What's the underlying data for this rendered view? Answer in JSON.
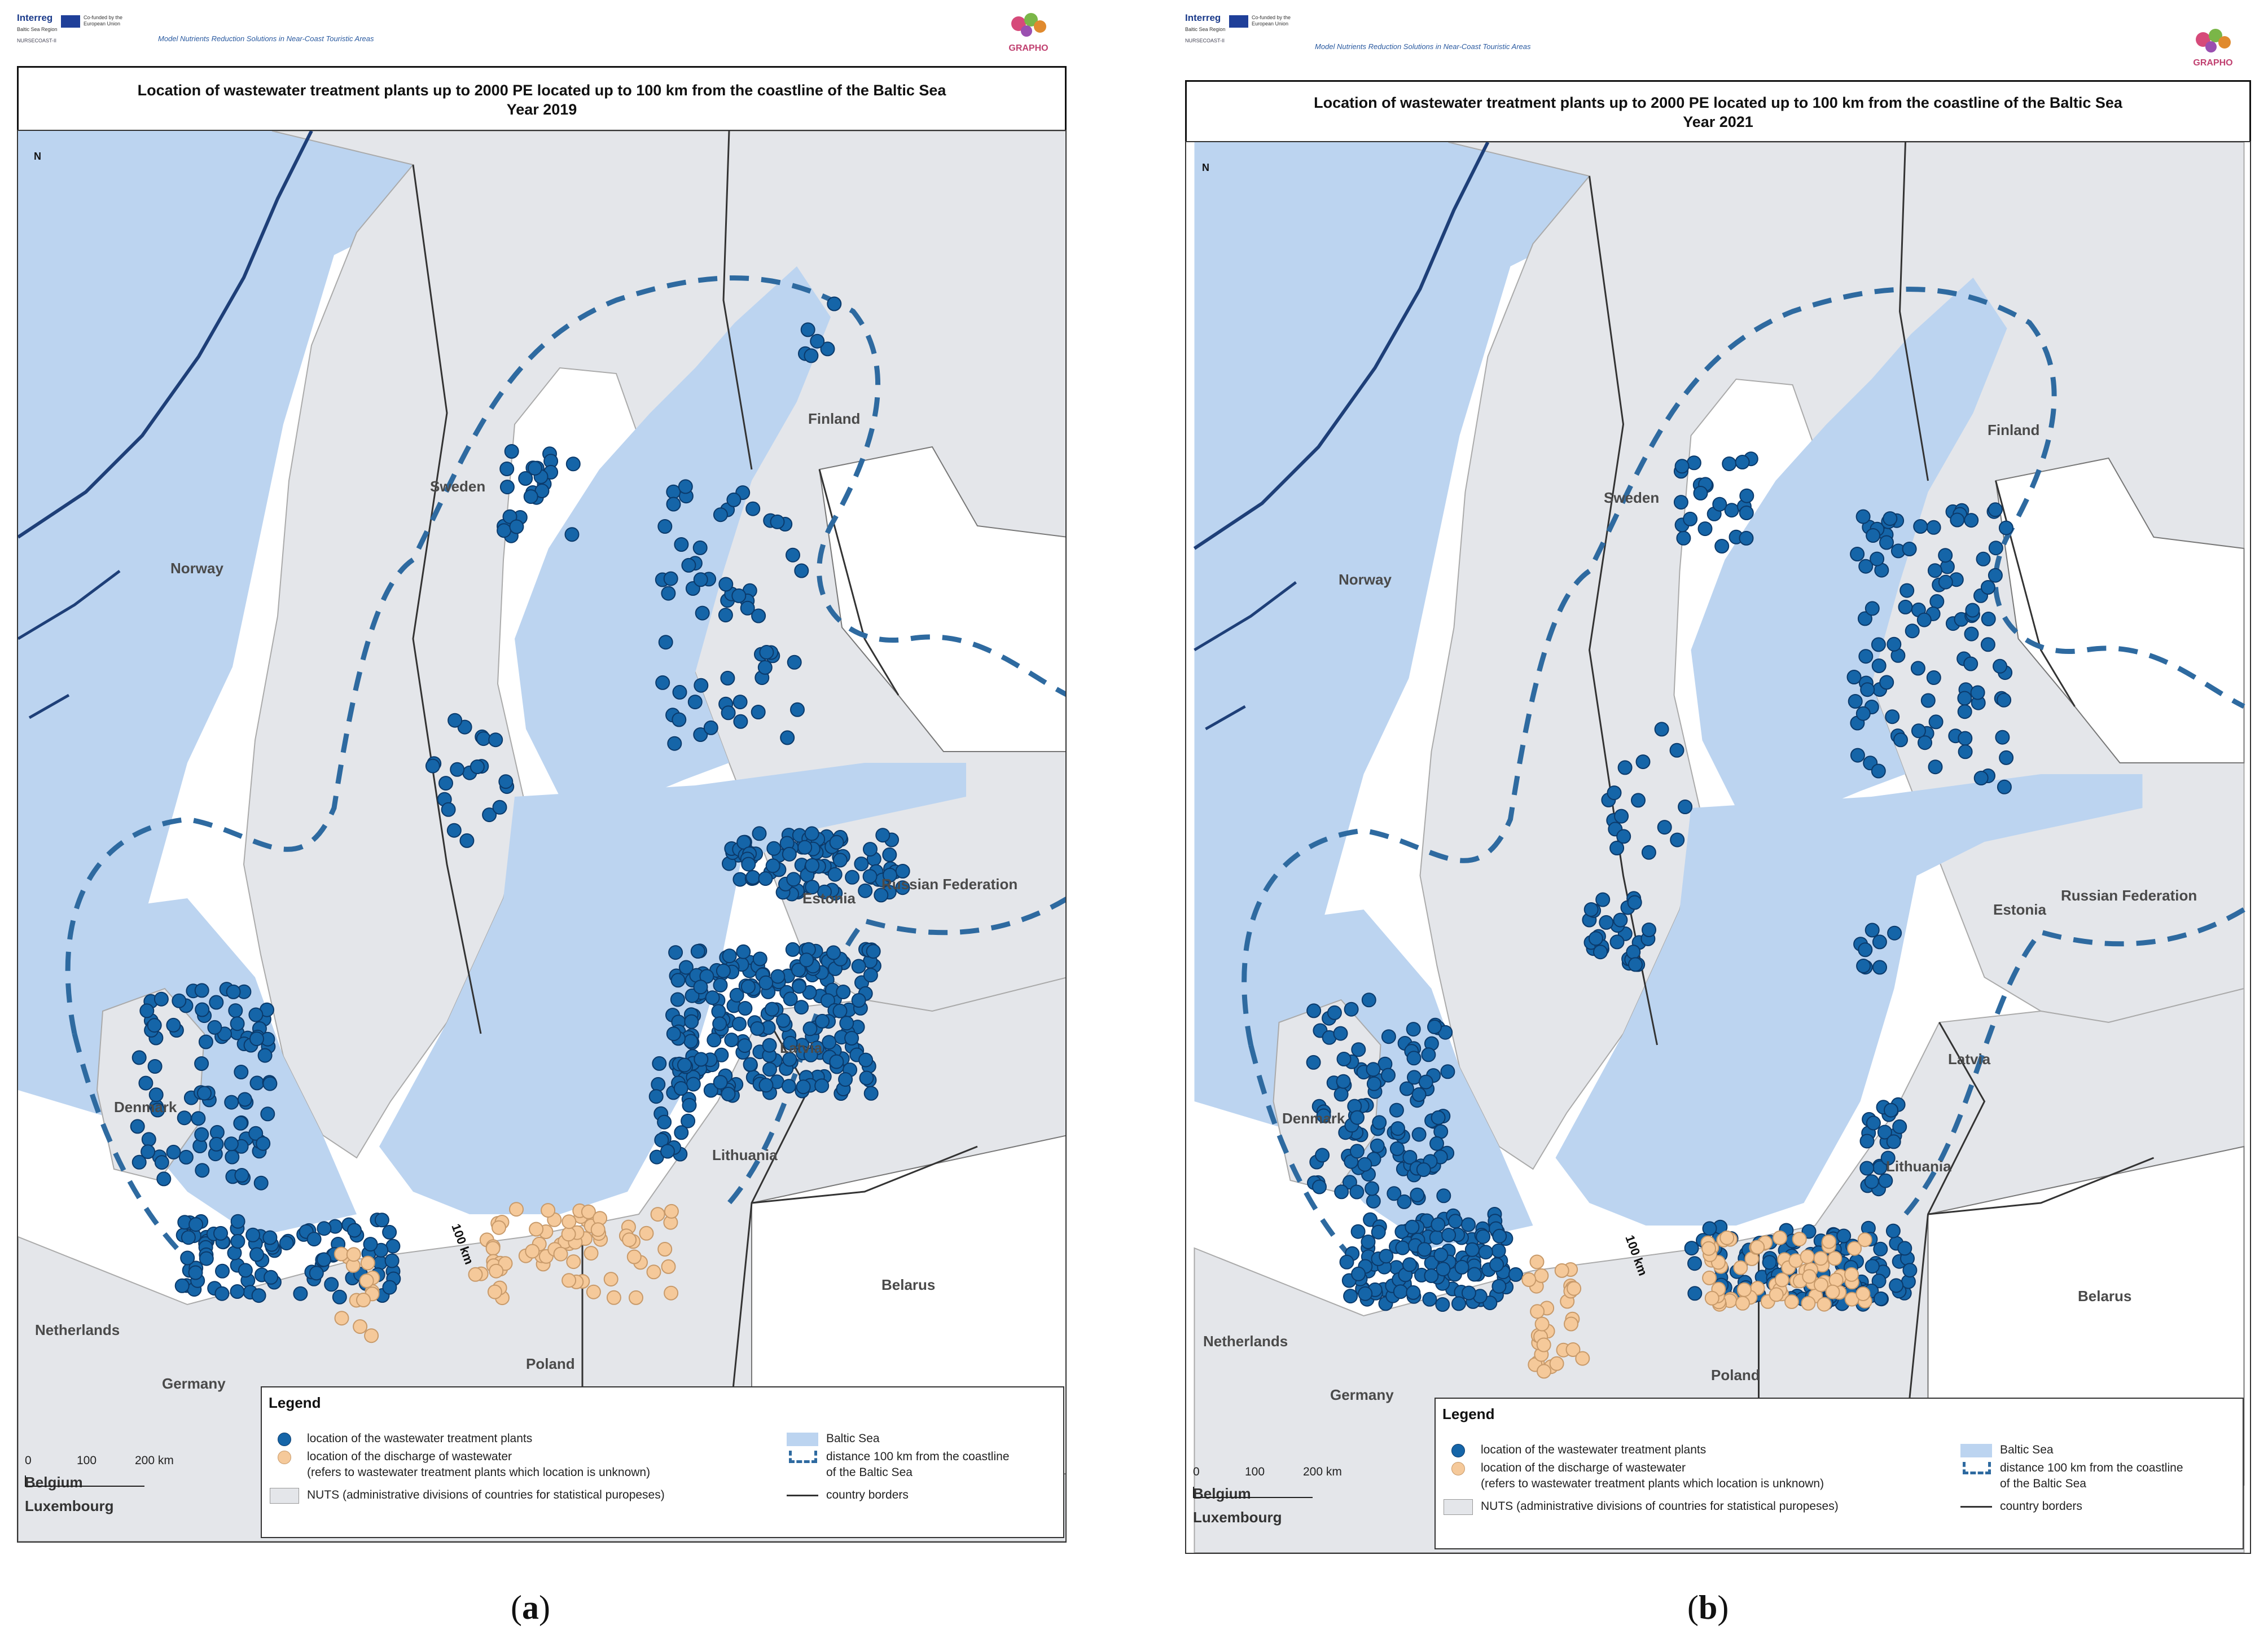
{
  "panels": [
    {
      "id": "a",
      "header": {
        "program": "Interreg",
        "program_sub": "Baltic Sea Region",
        "eu_text": "Co-funded by the European Union",
        "project_text": "Model Nutrients Reduction Solutions in Near-Coast Touristic Areas",
        "ns_logo": "NURSECOAST-II",
        "project_logo": "GRAPHO"
      },
      "title": {
        "line1": "Location of wastewater treatment plants up to 2000 PE located up to 100 km from the coastline of the Baltic Sea",
        "line2": "Year 2019"
      },
      "labels": {
        "norway": "Norway",
        "sweden": "Sweden",
        "finland": "Finland",
        "russia": "Russian Federation",
        "estonia": "Estonia",
        "latvia": "Latvia",
        "lithuania": "Lithuania",
        "denmark": "Denmark",
        "belarus": "Belarus",
        "netherlands": "Netherlands",
        "germany": "Germany",
        "poland": "Poland",
        "belgium": "Belgium",
        "luxembourg": "Luxembourg",
        "distance": "100 km",
        "north": "N"
      },
      "legend": {
        "title": "Legend",
        "wwtp": "location of the wastewater treatment plants",
        "discharge_1": "location of the discharge of wastewater",
        "discharge_2": "(refers to wastewater treatment plants which location is unknown)",
        "nuts": "NUTS (administrative divisions of countries for statistical puropeses)",
        "sea": "Baltic Sea",
        "dist_1": "distance 100 km from the coastline",
        "dist_2": "of the Baltic Sea",
        "borders": "country borders"
      },
      "scale": {
        "s0": "0",
        "s100": "100",
        "s200": "200 km"
      },
      "caption": "a"
    },
    {
      "id": "b",
      "header": {
        "program": "Interreg",
        "program_sub": "Baltic Sea Region",
        "eu_text": "Co-funded by the European Union",
        "project_text": "Model Nutrients Reduction Solutions in Near-Coast Touristic Areas",
        "ns_logo": "NURSECOAST-II",
        "project_logo": "GRAPHO"
      },
      "title": {
        "line1": "Location of wastewater treatment plants up to 2000 PE located up to 100 km from the coastline of the Baltic Sea",
        "line2": "Year 2021"
      },
      "labels": {
        "norway": "Norway",
        "sweden": "Sweden",
        "finland": "Finland",
        "russia": "Russian Federation",
        "estonia": "Estonia",
        "latvia": "Latvia",
        "lithuania": "Lithuania",
        "denmark": "Denmark",
        "belarus": "Belarus",
        "netherlands": "Netherlands",
        "germany": "Germany",
        "poland": "Poland",
        "belgium": "Belgium",
        "luxembourg": "Luxembourg",
        "distance": "100 km",
        "north": "N"
      },
      "legend": {
        "title": "Legend",
        "wwtp": "location of the wastewater treatment plants",
        "discharge_1": "location of the discharge of wastewater",
        "discharge_2": "(refers to wastewater treatment plants which location is unknown)",
        "nuts": "NUTS (administrative divisions of countries for statistical puropeses)",
        "sea": "Baltic Sea",
        "dist_1": "distance 100 km from the coastline",
        "dist_2": "of the Baltic Sea",
        "borders": "country borders"
      },
      "scale": {
        "s0": "0",
        "s100": "100",
        "s200": "200 km"
      },
      "caption": "b"
    }
  ],
  "colors": {
    "sea": "#bcd4f0",
    "land": "#e4e6ea",
    "non_nuts": "#ffffff",
    "wwtp_dot": "#1565a8",
    "discharge_dot": "#f5c99a",
    "buffer_line": "#2e6aa0",
    "norway_coast": "#1e3f78"
  }
}
